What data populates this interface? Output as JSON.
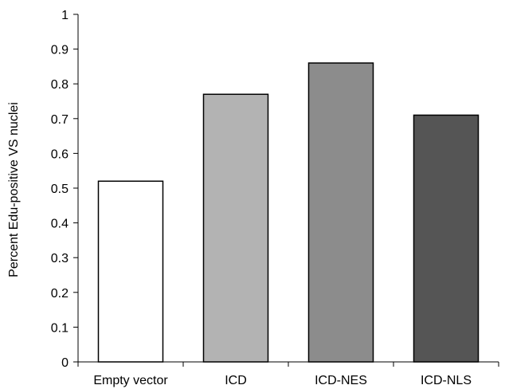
{
  "chart_data": {
    "type": "bar",
    "title": "",
    "xlabel": "",
    "ylabel": "Percent Edu-positive VS nuclei",
    "categories": [
      "Empty vector",
      "ICD",
      "ICD-NES",
      "ICD-NLS"
    ],
    "values": [
      0.52,
      0.77,
      0.86,
      0.71
    ],
    "colors": [
      "#ffffff",
      "#b3b3b3",
      "#8c8c8c",
      "#555555"
    ],
    "ylim": [
      0,
      1
    ],
    "yticks": [
      "0",
      "0.1",
      "0.2",
      "0.3",
      "0.4",
      "0.5",
      "0.6",
      "0.7",
      "0.8",
      "0.9",
      "1"
    ],
    "grid": false,
    "legend": "none"
  }
}
